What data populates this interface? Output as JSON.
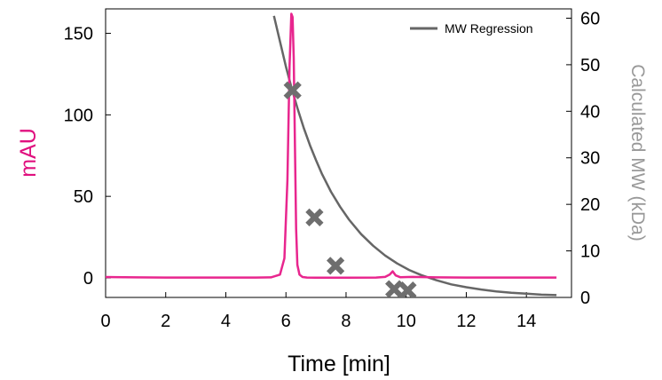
{
  "chart_data": {
    "type": "line",
    "xlabel": "Time [min]",
    "ylabel": "mAU",
    "y2label": "Calculated MW (kDa)",
    "xlim": [
      0,
      15.5
    ],
    "ylim": [
      -12,
      165
    ],
    "y2lim": [
      0,
      62
    ],
    "x_ticks": [
      0,
      2,
      4,
      6,
      8,
      10,
      12,
      14
    ],
    "y_ticks": [
      0,
      50,
      100,
      150
    ],
    "y2_ticks": [
      0,
      10,
      20,
      30,
      40,
      50,
      60
    ],
    "legend": {
      "position": "top-right",
      "entries": [
        "MW Regression"
      ]
    },
    "colors": {
      "signal": "#e8268e",
      "regression": "#666666",
      "markers": "#6e6e6e",
      "ylabel": "#e0117f",
      "y2label": "#999999"
    },
    "series": [
      {
        "role": "chromatogram",
        "axis": "left",
        "x": [
          0,
          1,
          2,
          3,
          4,
          5,
          5.5,
          5.8,
          5.95,
          6.05,
          6.12,
          6.18,
          6.22,
          6.26,
          6.3,
          6.34,
          6.38,
          6.45,
          6.55,
          6.7,
          7,
          8,
          9,
          9.3,
          9.45,
          9.55,
          9.65,
          9.8,
          10.2,
          11,
          12,
          13,
          14,
          15
        ],
        "values": [
          0.5,
          0.3,
          0.2,
          0.2,
          0.2,
          0.2,
          0.3,
          2,
          12,
          60,
          130,
          162,
          160,
          135,
          80,
          30,
          8,
          2,
          0.5,
          0.2,
          0.1,
          0.1,
          0.2,
          0.6,
          2,
          4,
          1.5,
          0.4,
          0.6,
          0.3,
          0.2,
          0.2,
          0.2,
          0.2
        ]
      },
      {
        "name": "MW Regression",
        "role": "regression",
        "axis": "right",
        "x": [
          5.6,
          5.8,
          6,
          6.2,
          6.4,
          6.6,
          6.8,
          7,
          7.2,
          7.5,
          7.8,
          8.1,
          8.5,
          8.9,
          9.3,
          9.7,
          10.1,
          10.5,
          11,
          11.5,
          12,
          12.5,
          13,
          13.5,
          14,
          14.5,
          15
        ],
        "values": [
          60.5,
          55,
          49.6,
          44.7,
          40.3,
          36.3,
          32.7,
          29.5,
          26.5,
          22.7,
          19.5,
          16.7,
          13.6,
          11.1,
          9.0,
          7.3,
          5.9,
          4.8,
          3.7,
          2.8,
          2.2,
          1.7,
          1.3,
          1.0,
          0.8,
          0.6,
          0.5
        ]
      },
      {
        "role": "standards",
        "axis": "right",
        "marker": "x",
        "x": [
          6.22,
          6.95,
          7.65,
          9.6,
          10.05
        ],
        "values": [
          44.5,
          17.2,
          6.8,
          1.8,
          1.5
        ]
      }
    ]
  }
}
